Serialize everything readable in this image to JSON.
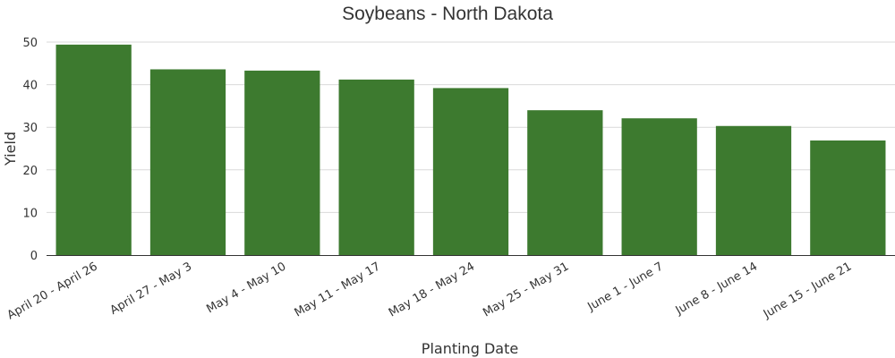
{
  "chart_data": {
    "type": "bar",
    "title": "Soybeans - North Dakota",
    "xlabel": "Planting Date",
    "ylabel": "Yield",
    "categories": [
      "April 20 - April 26",
      "April 27 - May 3",
      "May 4 - May 10",
      "May 11 - May 17",
      "May 18 - May 24",
      "May 25 - May 31",
      "June 1 - June 7",
      "June 8 - June 14",
      "June 15 - June 21"
    ],
    "values": [
      49.4,
      43.6,
      43.3,
      41.2,
      39.2,
      34.0,
      32.1,
      30.3,
      26.9
    ],
    "ylim": [
      0,
      50
    ],
    "yticks": [
      0,
      10,
      20,
      30,
      40,
      50
    ],
    "grid": true,
    "bar_color": "#3d7a2f"
  }
}
